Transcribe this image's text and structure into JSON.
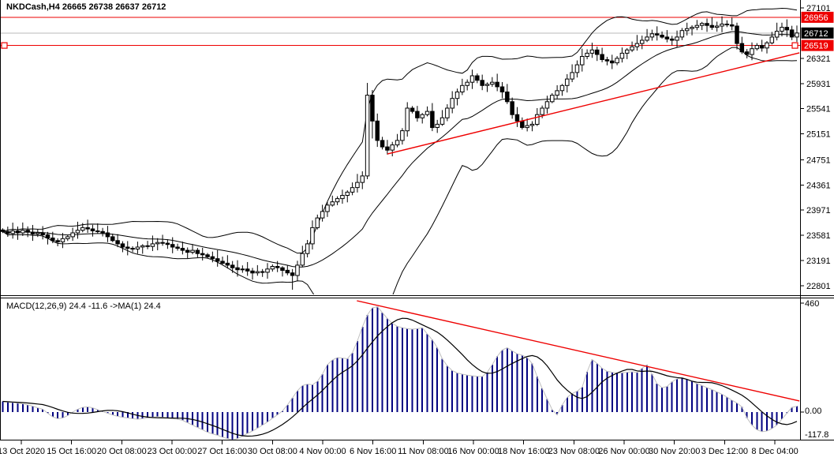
{
  "window": {
    "title": "NKDCash,H4  26665 26738 26637 26712"
  },
  "colors": {
    "background": "#ffffff",
    "foreground": "#000000",
    "red_line": "#ee0000",
    "last_price_line": "#b9b9b9",
    "last_price_label_bg": "#000000",
    "level_label_bg": "#ee0000",
    "macd_bar": "#000080",
    "macd_envelope": "#c0c0c0",
    "macd_signal": "#000000"
  },
  "chart_data": [
    {
      "type": "candlestick",
      "symbol": "NKDCash",
      "timeframe": "H4",
      "ohlc_header": {
        "open": 26665,
        "high": 26738,
        "low": 26637,
        "close": 26712
      },
      "ylim": [
        22670,
        27220
      ],
      "y_ticks": [
        27101,
        26321,
        25931,
        25541,
        25151,
        24751,
        24361,
        23971,
        23581,
        23191,
        22801
      ],
      "price_lines": [
        {
          "value": 26956,
          "color": "#ee0000",
          "label": "26956",
          "label_bg": "#ee0000",
          "selected": false
        },
        {
          "value": 26712,
          "color": "#b9b9b9",
          "label": "26712",
          "label_bg": "#000000",
          "role": "last-price"
        },
        {
          "value": 26519,
          "color": "#ee0000",
          "label": "26519",
          "label_bg": "#ee0000",
          "selected": true
        }
      ],
      "trendline": {
        "bar1": 77,
        "price1": 24840,
        "bar2": 159.5,
        "price2": 26405,
        "color": "#ee0000"
      },
      "bollinger": {
        "period": 20,
        "deviation": 2
      },
      "x_labels": [
        "13 Oct 2020",
        "15 Oct 16:00",
        "20 Oct 08:00",
        "23 Oct 00:00",
        "27 Oct 16:00",
        "30 Oct 08:00",
        "4 Nov 00:00",
        "6 Nov 16:00",
        "11 Nov 08:00",
        "16 Nov 00:00",
        "18 Nov 16:00",
        "23 Nov 08:00",
        "26 Nov 00:00",
        "30 Nov 20:00",
        "3 Dec 12:00",
        "8 Dec 04:00"
      ],
      "candles": {
        "closes": [
          23640,
          23610,
          23650,
          23620,
          23660,
          23630,
          23600,
          23620,
          23590,
          23540,
          23500,
          23480,
          23530,
          23560,
          23620,
          23660,
          23700,
          23680,
          23650,
          23640,
          23620,
          23560,
          23500,
          23450,
          23400,
          23380,
          23370,
          23400,
          23420,
          23410,
          23450,
          23470,
          23460,
          23440,
          23400,
          23380,
          23350,
          23320,
          23350,
          23300,
          23280,
          23250,
          23220,
          23180,
          23150,
          23120,
          23080,
          23050,
          23060,
          23030,
          23000,
          23020,
          23010,
          23060,
          23100,
          23080,
          23040,
          23000,
          22960,
          23120,
          23300,
          23450,
          23700,
          23850,
          23950,
          24050,
          24100,
          24150,
          24200,
          24250,
          24320,
          24400,
          24500,
          25750,
          25350,
          25050,
          24950,
          24900,
          24980,
          25050,
          25200,
          25550,
          25500,
          25400,
          25450,
          25500,
          25250,
          25300,
          25400,
          25550,
          25700,
          25800,
          25900,
          25950,
          26050,
          25980,
          25900,
          25920,
          25950,
          25880,
          25800,
          25650,
          25450,
          25350,
          25250,
          25280,
          25300,
          25450,
          25550,
          25650,
          25750,
          25820,
          25900,
          26000,
          26100,
          26220,
          26350,
          26400,
          26450,
          26380,
          26300,
          26280,
          26250,
          26320,
          26400,
          26450,
          26500,
          26550,
          26600,
          26650,
          26700,
          26680,
          26650,
          26620,
          26600,
          26650,
          26750,
          26780,
          26800,
          26830,
          26860,
          26830,
          26800,
          26820,
          26850,
          26840,
          26820,
          26550,
          26420,
          26380,
          26470,
          26520,
          26480,
          26560,
          26650,
          26740,
          26800,
          26760,
          26650,
          26712
        ],
        "wick_overrides": {
          "58": [
            23060,
            22740
          ],
          "73": [
            25940,
            24450
          ],
          "74": [
            25830,
            25080
          ]
        }
      }
    },
    {
      "type": "macd",
      "label": "MACD(12,26,9) 24.4 -11.6  ->MA(1) 24.4",
      "params": {
        "fast": 12,
        "slow": 26,
        "signal": 9
      },
      "current": {
        "macd": 24.4,
        "signal": -11.6,
        "ma1": 24.4
      },
      "y_ticks": [
        {
          "label": "460",
          "value": 460
        },
        {
          "label": "0.00",
          "value": 0
        },
        {
          "label": "-117.8",
          "value": -117.8
        }
      ],
      "ylim": [
        -117.8,
        460
      ],
      "values": [
        45,
        42,
        40,
        38,
        35,
        30,
        25,
        18,
        12,
        -5,
        -20,
        -28,
        -25,
        -15,
        0,
        12,
        20,
        22,
        18,
        10,
        2,
        -5,
        -12,
        -18,
        -22,
        -25,
        -28,
        -30,
        -28,
        -25,
        -22,
        -20,
        -22,
        -25,
        -28,
        -30,
        -35,
        -45,
        -55,
        -65,
        -75,
        -85,
        -92,
        -98,
        -106,
        -112,
        -117.8,
        -112,
        -102,
        -90,
        -80,
        -68,
        -55,
        -42,
        -26,
        -12,
        5,
        30,
        60,
        90,
        112,
        118,
        115,
        130,
        160,
        200,
        220,
        230,
        228,
        225,
        250,
        300,
        360,
        410,
        440,
        445,
        420,
        395,
        375,
        362,
        356,
        352,
        350,
        352,
        356,
        330,
        305,
        272,
        225,
        195,
        175,
        165,
        160,
        156,
        153,
        151,
        150,
        168,
        200,
        235,
        262,
        272,
        258,
        246,
        240,
        230,
        205,
        150,
        100,
        55,
        10,
        -12,
        30,
        62,
        78,
        88,
        105,
        170,
        222,
        205,
        185,
        172,
        168,
        165,
        166,
        168,
        170,
        167,
        185,
        200,
        160,
        120,
        103,
        108,
        128,
        140,
        146,
        138,
        130,
        120,
        112,
        103,
        95,
        85,
        75,
        63,
        50,
        38,
        22,
        -25,
        -55,
        -75,
        -83,
        -80,
        -70,
        -55,
        -30,
        -5,
        20,
        24.4
      ],
      "trendline": {
        "bar1": 70.9,
        "value1": 470,
        "bar2": 159.5,
        "value2": 47,
        "color": "#ee0000"
      }
    }
  ]
}
